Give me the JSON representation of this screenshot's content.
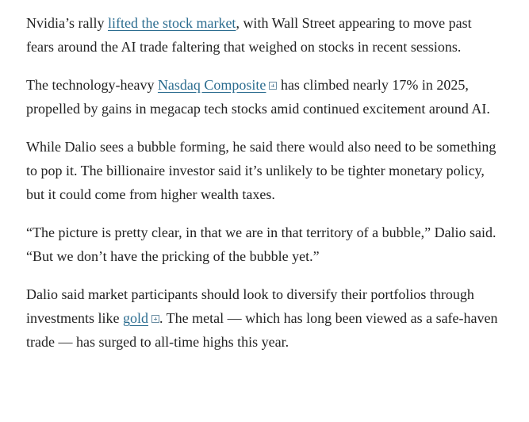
{
  "paragraphs": [
    [
      {
        "text": "Nvidia’s rally "
      },
      {
        "link": "lifted the stock market"
      },
      {
        "text": ", with Wall Street appearing to move past fears around the AI trade faltering that weighed on stocks in recent sessions."
      }
    ],
    [
      {
        "text": "The technology-heavy "
      },
      {
        "link": "Nasdaq Composite",
        "icon": true
      },
      {
        "text": " has climbed nearly 17% in 2025, propelled by gains in megacap tech stocks amid continued excitement around AI."
      }
    ],
    [
      {
        "text": "While Dalio sees a bubble forming, he said there would also need to be something to pop it. The billionaire investor said it’s unlikely to be tighter monetary policy, but it could come from higher wealth taxes."
      }
    ],
    [
      {
        "text": "“The picture is pretty clear, in that we are in that territory of a bubble,” Dalio said. “But we don’t have the pricking of the bubble yet.”"
      }
    ],
    [
      {
        "text": "Dalio said market participants should look to diversify their portfolios through investments like "
      },
      {
        "link": "gold",
        "icon": true
      },
      {
        "text": ". The metal — which has long been viewed as a safe-haven trade — has surged to all-time highs this year."
      }
    ]
  ]
}
